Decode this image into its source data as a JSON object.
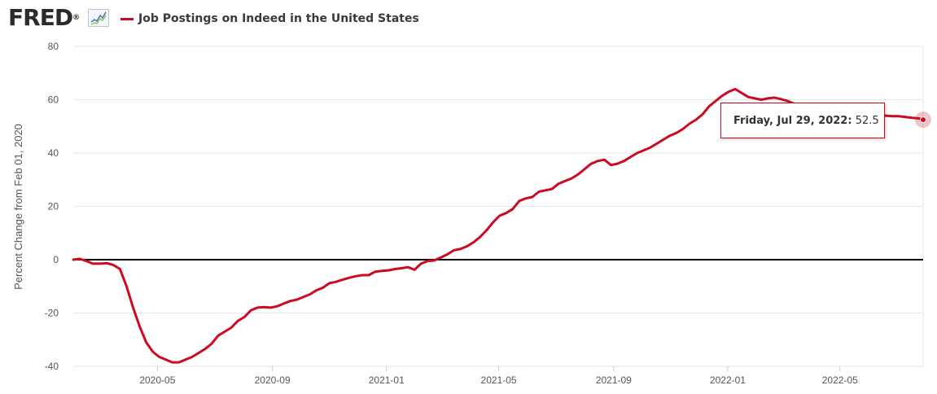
{
  "header": {
    "logo_text": "FRED",
    "logo_registered": "®",
    "logo_icon": "trend-line-icon",
    "series_title": "Job Postings on Indeed in the United States",
    "series_color": "#cc0a21"
  },
  "tooltip": {
    "date_label": "Friday, Jul 29, 2022:",
    "value": "52.5"
  },
  "chart_data": {
    "type": "line",
    "title": "",
    "xlabel": "",
    "ylabel": "Percent Change from Feb 01, 2020",
    "ylim": [
      -40,
      80
    ],
    "yticks": [
      -40,
      -20,
      0,
      20,
      40,
      60,
      80
    ],
    "xlim": [
      "2020-02-01",
      "2022-07-29"
    ],
    "xticks": [
      {
        "date": "2020-05-01",
        "label": "2020-05"
      },
      {
        "date": "2020-09-01",
        "label": "2020-09"
      },
      {
        "date": "2021-01-01",
        "label": "2021-01"
      },
      {
        "date": "2021-05-01",
        "label": "2021-05"
      },
      {
        "date": "2021-09-01",
        "label": "2021-09"
      },
      {
        "date": "2022-01-01",
        "label": "2022-01"
      },
      {
        "date": "2022-05-01",
        "label": "2022-05"
      }
    ],
    "grid": true,
    "zero_line": true,
    "series": [
      {
        "name": "Job Postings on Indeed in the United States",
        "color": "#cc0a21",
        "points": [
          [
            "2020-02-01",
            0
          ],
          [
            "2020-02-08",
            0.3
          ],
          [
            "2020-02-15",
            -0.5
          ],
          [
            "2020-02-22",
            -1.5
          ],
          [
            "2020-03-01",
            -1.5
          ],
          [
            "2020-03-08",
            -1.3
          ],
          [
            "2020-03-15",
            -2
          ],
          [
            "2020-03-22",
            -3.5
          ],
          [
            "2020-03-29",
            -10
          ],
          [
            "2020-04-05",
            -18
          ],
          [
            "2020-04-12",
            -25
          ],
          [
            "2020-04-19",
            -31
          ],
          [
            "2020-04-26",
            -34.5
          ],
          [
            "2020-05-03",
            -36.5
          ],
          [
            "2020-05-10",
            -37.5
          ],
          [
            "2020-05-17",
            -38.5
          ],
          [
            "2020-05-24",
            -38.5
          ],
          [
            "2020-05-31",
            -37.5
          ],
          [
            "2020-06-07",
            -36.5
          ],
          [
            "2020-06-14",
            -35
          ],
          [
            "2020-06-21",
            -33.5
          ],
          [
            "2020-06-28",
            -31.5
          ],
          [
            "2020-07-05",
            -28.5
          ],
          [
            "2020-07-12",
            -27
          ],
          [
            "2020-07-19",
            -25.5
          ],
          [
            "2020-07-26",
            -23
          ],
          [
            "2020-08-02",
            -21.5
          ],
          [
            "2020-08-09",
            -19
          ],
          [
            "2020-08-16",
            -18
          ],
          [
            "2020-08-23",
            -17.8
          ],
          [
            "2020-08-30",
            -18
          ],
          [
            "2020-09-06",
            -17.5
          ],
          [
            "2020-09-13",
            -16.5
          ],
          [
            "2020-09-20",
            -15.5
          ],
          [
            "2020-09-27",
            -15
          ],
          [
            "2020-10-04",
            -14
          ],
          [
            "2020-10-11",
            -13
          ],
          [
            "2020-10-18",
            -11.5
          ],
          [
            "2020-10-25",
            -10.5
          ],
          [
            "2020-11-01",
            -8.8
          ],
          [
            "2020-11-08",
            -8.3
          ],
          [
            "2020-11-15",
            -7.5
          ],
          [
            "2020-11-22",
            -6.8
          ],
          [
            "2020-11-29",
            -6.2
          ],
          [
            "2020-12-06",
            -5.8
          ],
          [
            "2020-12-13",
            -5.8
          ],
          [
            "2020-12-20",
            -4.5
          ],
          [
            "2020-12-27",
            -4.2
          ],
          [
            "2021-01-03",
            -4
          ],
          [
            "2021-01-10",
            -3.5
          ],
          [
            "2021-01-17",
            -3.2
          ],
          [
            "2021-01-24",
            -2.8
          ],
          [
            "2021-01-31",
            -3.8
          ],
          [
            "2021-02-07",
            -1.5
          ],
          [
            "2021-02-14",
            -0.5
          ],
          [
            "2021-02-21",
            -0.3
          ],
          [
            "2021-02-28",
            0.8
          ],
          [
            "2021-03-07",
            2
          ],
          [
            "2021-03-14",
            3.5
          ],
          [
            "2021-03-21",
            4
          ],
          [
            "2021-03-28",
            5
          ],
          [
            "2021-04-04",
            6.5
          ],
          [
            "2021-04-11",
            8.5
          ],
          [
            "2021-04-18",
            11
          ],
          [
            "2021-04-25",
            14
          ],
          [
            "2021-05-02",
            16.5
          ],
          [
            "2021-05-09",
            17.5
          ],
          [
            "2021-05-16",
            19
          ],
          [
            "2021-05-23",
            22
          ],
          [
            "2021-05-30",
            23
          ],
          [
            "2021-06-06",
            23.5
          ],
          [
            "2021-06-13",
            25.5
          ],
          [
            "2021-06-20",
            26
          ],
          [
            "2021-06-27",
            26.5
          ],
          [
            "2021-07-04",
            28.5
          ],
          [
            "2021-07-11",
            29.5
          ],
          [
            "2021-07-18",
            30.5
          ],
          [
            "2021-07-25",
            32
          ],
          [
            "2021-08-01",
            34
          ],
          [
            "2021-08-08",
            36
          ],
          [
            "2021-08-15",
            37
          ],
          [
            "2021-08-22",
            37.5
          ],
          [
            "2021-08-29",
            35.5
          ],
          [
            "2021-09-05",
            36
          ],
          [
            "2021-09-12",
            37
          ],
          [
            "2021-09-19",
            38.5
          ],
          [
            "2021-09-26",
            40
          ],
          [
            "2021-10-03",
            41
          ],
          [
            "2021-10-10",
            42
          ],
          [
            "2021-10-17",
            43.5
          ],
          [
            "2021-10-24",
            45
          ],
          [
            "2021-10-31",
            46.5
          ],
          [
            "2021-11-07",
            47.5
          ],
          [
            "2021-11-14",
            49
          ],
          [
            "2021-11-21",
            51
          ],
          [
            "2021-11-28",
            52.5
          ],
          [
            "2021-12-05",
            54.5
          ],
          [
            "2021-12-12",
            57.5
          ],
          [
            "2021-12-19",
            59.5
          ],
          [
            "2021-12-26",
            61.5
          ],
          [
            "2022-01-02",
            63
          ],
          [
            "2022-01-09",
            64
          ],
          [
            "2022-01-16",
            62.5
          ],
          [
            "2022-01-23",
            61
          ],
          [
            "2022-01-30",
            60.5
          ],
          [
            "2022-02-06",
            60
          ],
          [
            "2022-02-13",
            60.5
          ],
          [
            "2022-02-20",
            60.8
          ],
          [
            "2022-02-27",
            60.2
          ],
          [
            "2022-03-06",
            59.5
          ],
          [
            "2022-03-13",
            58.5
          ],
          [
            "2022-03-20",
            58
          ],
          [
            "2022-03-27",
            57.5
          ],
          [
            "2022-04-03",
            57
          ],
          [
            "2022-04-10",
            56.5
          ],
          [
            "2022-04-17",
            56
          ],
          [
            "2022-04-24",
            55.5
          ],
          [
            "2022-05-01",
            55
          ],
          [
            "2022-05-08",
            54.5
          ],
          [
            "2022-05-15",
            54
          ],
          [
            "2022-05-22",
            53.8
          ],
          [
            "2022-05-29",
            53.5
          ],
          [
            "2022-06-05",
            53.5
          ],
          [
            "2022-06-12",
            54
          ],
          [
            "2022-06-19",
            54
          ],
          [
            "2022-06-26",
            53.8
          ],
          [
            "2022-07-03",
            53.8
          ],
          [
            "2022-07-10",
            53.5
          ],
          [
            "2022-07-17",
            53.2
          ],
          [
            "2022-07-24",
            53
          ],
          [
            "2022-07-29",
            52.5
          ]
        ]
      }
    ],
    "highlight_point": [
      "2022-07-29",
      52.5
    ]
  }
}
